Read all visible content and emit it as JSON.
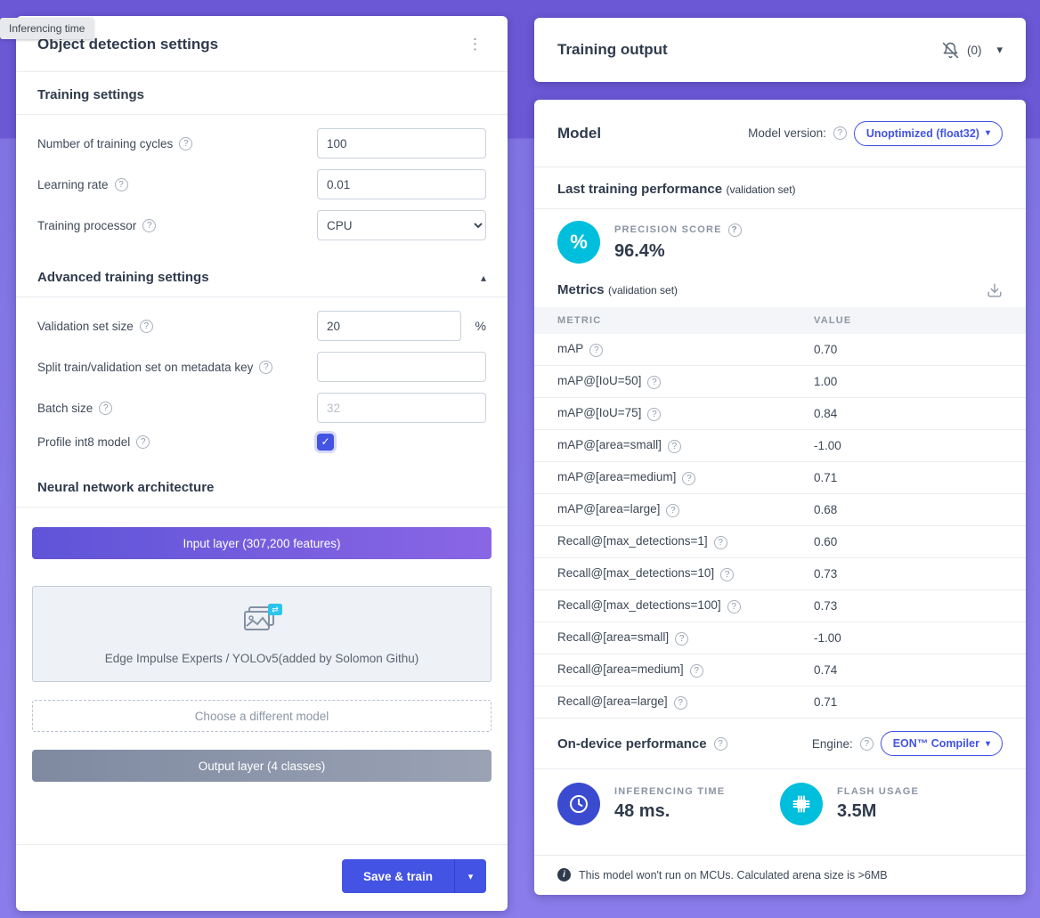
{
  "tooltip": {
    "label": "Inferencing time"
  },
  "colors": {
    "accent_indigo": "#4353e4",
    "cyan": "#00bfdc",
    "indigo_circle": "#3a4bd0",
    "purple_band": "#6b58d5",
    "purple_background": "#8073e2",
    "input_layer_gradient": [
      "#5f54d8",
      "#8a66e4"
    ],
    "output_layer_gradient": [
      "#7f8aa1",
      "#9aa2b4"
    ]
  },
  "detection_settings": {
    "title": "Object detection settings",
    "training": {
      "heading": "Training settings",
      "cycles_label": "Number of training cycles",
      "cycles_value": "100",
      "lr_label": "Learning rate",
      "lr_value": "0.01",
      "processor_label": "Training processor",
      "processor_value": "CPU"
    },
    "advanced": {
      "heading": "Advanced training settings",
      "validation_label": "Validation set size",
      "validation_value": "20",
      "validation_suffix": "%",
      "split_label": "Split train/validation set on metadata key",
      "split_value": "",
      "batch_label": "Batch size",
      "batch_placeholder": "32",
      "profile_label": "Profile int8 model",
      "profile_checked": true
    },
    "architecture": {
      "heading": "Neural network architecture",
      "input_layer": "Input layer (307,200 features)",
      "model_name": "Edge Impulse Experts / YOLOv5(added by Solomon Githu)",
      "choose_model": "Choose a different model",
      "output_layer": "Output layer (4 classes)"
    },
    "save_button": "Save & train"
  },
  "training_output": {
    "title": "Training output",
    "notifications": "(0)"
  },
  "model_panel": {
    "title": "Model",
    "version_label": "Model version:",
    "version_value": "Unoptimized (float32)",
    "performance_heading": "Last training performance",
    "performance_subheading": "(validation set)",
    "precision_label": "PRECISION SCORE",
    "precision_value": "96.4%",
    "metrics_heading": "Metrics",
    "metrics_subheading": "(validation set)",
    "table": {
      "headers": [
        "METRIC",
        "VALUE"
      ],
      "rows": [
        {
          "metric": "mAP",
          "value": "0.70"
        },
        {
          "metric": "mAP@[IoU=50]",
          "value": "1.00"
        },
        {
          "metric": "mAP@[IoU=75]",
          "value": "0.84"
        },
        {
          "metric": "mAP@[area=small]",
          "value": "-1.00"
        },
        {
          "metric": "mAP@[area=medium]",
          "value": "0.71"
        },
        {
          "metric": "mAP@[area=large]",
          "value": "0.68"
        },
        {
          "metric": "Recall@[max_detections=1]",
          "value": "0.60"
        },
        {
          "metric": "Recall@[max_detections=10]",
          "value": "0.73"
        },
        {
          "metric": "Recall@[max_detections=100]",
          "value": "0.73"
        },
        {
          "metric": "Recall@[area=small]",
          "value": "-1.00"
        },
        {
          "metric": "Recall@[area=medium]",
          "value": "0.74"
        },
        {
          "metric": "Recall@[area=large]",
          "value": "0.71"
        }
      ]
    },
    "ondevice_heading": "On-device performance",
    "engine_label": "Engine:",
    "engine_value": "EON™ Compiler",
    "inferencing_label": "INFERENCING TIME",
    "inferencing_value": "48 ms.",
    "flash_label": "FLASH USAGE",
    "flash_value": "3.5M",
    "footnote": "This model won't run on MCUs. Calculated arena size is >6MB"
  }
}
